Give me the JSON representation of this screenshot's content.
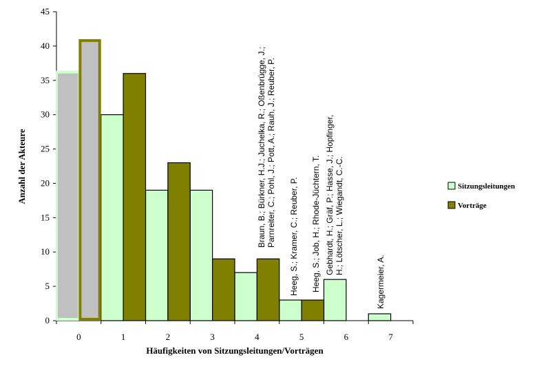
{
  "chart_data": {
    "type": "bar",
    "categories": [
      "0",
      "1",
      "2",
      "3",
      "4",
      "5",
      "6",
      "7"
    ],
    "series": [
      {
        "name": "Sitzungsleitungen",
        "values": [
          36,
          30,
          19,
          19,
          7,
          3,
          6,
          1
        ],
        "color": "#ccffcc"
      },
      {
        "name": "Vorträge",
        "values": [
          41,
          36,
          23,
          9,
          9,
          3,
          0,
          0
        ],
        "color": "#808000"
      }
    ],
    "highlight": {
      "category": "0",
      "color": "#c0c0c0"
    },
    "xlabel": "Häufigkeiten von Sitzungsleitungen/Vorträgen",
    "ylabel": "Anzahl der Akteure",
    "ylim": [
      0,
      45
    ],
    "yticks": [
      "0",
      "5",
      "10",
      "15",
      "20",
      "25",
      "30",
      "35",
      "40",
      "45"
    ],
    "grid": false,
    "legend": "right",
    "annotations": [
      {
        "category": "4",
        "lines": [
          "Braun, B.; Bürkner, H.J.; Juchelka, R.; Oßenbrügge, J.;",
          "Parnreiter, C.; Pohl, J.; Pott, A.; Rauh, J.; Reuber, P."
        ]
      },
      {
        "category": "5",
        "lines": [
          "Heeg, S.; Kramer, C.; Reuber, P."
        ]
      },
      {
        "category": "5",
        "lines": [
          "Heeg, S.; Job, H.; Rhode-Jüchtern, T."
        ]
      },
      {
        "category": "6",
        "lines": [
          "Gebhardt, H.; Gräf, P.; Hasse, J.; Hopfinger,",
          "H.; Lötscher, L.; Wiegandt, C.-C."
        ]
      },
      {
        "category": "7",
        "lines": [
          "Kagermeier, A."
        ]
      }
    ]
  }
}
